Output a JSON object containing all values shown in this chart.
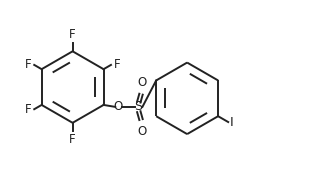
{
  "bg_color": "#ffffff",
  "line_color": "#222222",
  "line_width": 1.4,
  "font_size": 8.5,
  "label_color": "#222222",
  "fig_width": 3.24,
  "fig_height": 1.78,
  "dpi": 100,
  "xlim": [
    -3.8,
    4.5
  ],
  "ylim": [
    -1.55,
    1.55
  ]
}
